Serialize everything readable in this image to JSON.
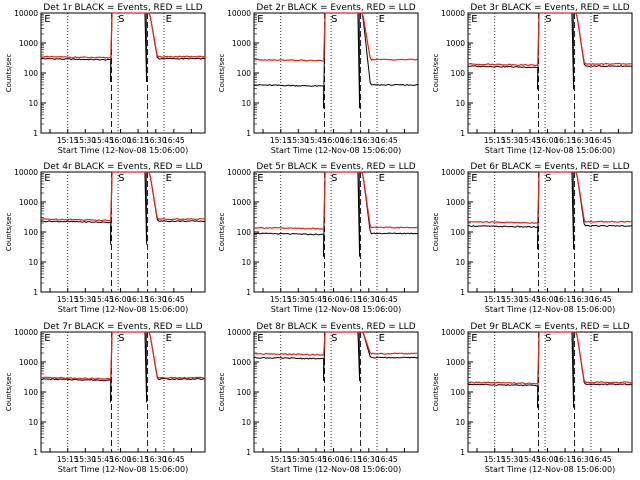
{
  "chart_data": [
    {
      "type": "line",
      "title": "Det 1r BLACK = Events, RED = LLD",
      "xlabel": "Start Time (12-Nov-08 15:06:00)",
      "ylabel": "Counts/sec",
      "black_level": 300,
      "red_level": 350,
      "peak": "saturated",
      "markers": [
        "E",
        "S",
        "E"
      ],
      "xticks": [
        "15:15",
        "15:30",
        "15:45",
        "16:00",
        "16:15",
        "16:30",
        "16:45"
      ],
      "yticks": [
        "1",
        "10",
        "100",
        "1000",
        "10000"
      ]
    },
    {
      "type": "line",
      "title": "Det 2r BLACK = Events, RED = LLD",
      "xlabel": "Start Time (12-Nov-08 15:06:00)",
      "ylabel": "Counts/sec",
      "black_level": 40,
      "red_level": 280,
      "peak": "saturated",
      "markers": [
        "E",
        "S",
        "E"
      ],
      "xticks": [
        "15:15",
        "15:30",
        "15:45",
        "16:00",
        "16:15",
        "16:30",
        "16:45"
      ],
      "yticks": [
        "1",
        "10",
        "100",
        "1000",
        "10000"
      ]
    },
    {
      "type": "line",
      "title": "Det 3r BLACK = Events, RED = LLD",
      "xlabel": "Start Time (12-Nov-08 15:06:00)",
      "ylabel": "Counts/sec",
      "black_level": 170,
      "red_level": 200,
      "peak": "saturated",
      "markers": [
        "E",
        "S",
        "E"
      ],
      "xticks": [
        "15:15",
        "15:30",
        "15:45",
        "16:00",
        "16:15",
        "16:30",
        "16:45"
      ],
      "yticks": [
        "1",
        "10",
        "100",
        "1000",
        "10000"
      ]
    },
    {
      "type": "line",
      "title": "Det 4r BLACK = Events, RED = LLD",
      "xlabel": "Start Time (12-Nov-08 15:06:00)",
      "ylabel": "Counts/sec",
      "black_level": 230,
      "red_level": 270,
      "peak": "saturated",
      "markers": [
        "E",
        "S",
        "E"
      ],
      "xticks": [
        "15:15",
        "15:30",
        "15:45",
        "16:00",
        "16:15",
        "16:30",
        "16:45"
      ],
      "yticks": [
        "1",
        "10",
        "100",
        "1000",
        "10000"
      ]
    },
    {
      "type": "line",
      "title": "Det 5r BLACK = Events, RED = LLD",
      "xlabel": "Start Time (12-Nov-08 15:06:00)",
      "ylabel": "Counts/sec",
      "black_level": 90,
      "red_level": 140,
      "peak": "saturated",
      "markers": [
        "E",
        "S",
        "E"
      ],
      "xticks": [
        "15:15",
        "15:30",
        "15:45",
        "16:00",
        "16:15",
        "16:30",
        "16:45"
      ],
      "yticks": [
        "1",
        "10",
        "100",
        "1000",
        "10000"
      ]
    },
    {
      "type": "line",
      "title": "Det 6r BLACK = Events, RED = LLD",
      "xlabel": "Start Time (12-Nov-08 15:06:00)",
      "ylabel": "Counts/sec",
      "black_level": 160,
      "red_level": 220,
      "peak": "saturated",
      "markers": [
        "E",
        "S",
        "E"
      ],
      "xticks": [
        "15:15",
        "15:30",
        "15:45",
        "16:00",
        "16:15",
        "16:30",
        "16:45"
      ],
      "yticks": [
        "1",
        "10",
        "100",
        "1000",
        "10000"
      ]
    },
    {
      "type": "line",
      "title": "Det 7r BLACK = Events, RED = LLD",
      "xlabel": "Start Time (12-Nov-08 15:06:00)",
      "ylabel": "Counts/sec",
      "black_level": 270,
      "red_level": 300,
      "peak": "saturated",
      "markers": [
        "E",
        "S",
        "E"
      ],
      "xticks": [
        "15:15",
        "15:30",
        "15:45",
        "16:00",
        "16:15",
        "16:30",
        "16:45"
      ],
      "yticks": [
        "1",
        "10",
        "100",
        "1000",
        "10000"
      ]
    },
    {
      "type": "line",
      "title": "Det 8r BLACK = Events, RED = LLD",
      "xlabel": "Start Time (12-Nov-08 15:06:00)",
      "ylabel": "Counts/sec",
      "black_level": 1400,
      "red_level": 1900,
      "peak": "saturated",
      "markers": [
        "E",
        "S",
        "E"
      ],
      "xticks": [
        "15:15",
        "15:30",
        "15:45",
        "16:00",
        "16:15",
        "16:30",
        "16:45"
      ],
      "yticks": [
        "1",
        "10",
        "100",
        "1000",
        "10000"
      ]
    },
    {
      "type": "line",
      "title": "Det 9r BLACK = Events, RED = LLD",
      "xlabel": "Start Time (12-Nov-08 15:06:00)",
      "ylabel": "Counts/sec",
      "black_level": 180,
      "red_level": 210,
      "peak": "saturated",
      "markers": [
        "E",
        "S",
        "E"
      ],
      "xticks": [
        "15:15",
        "15:30",
        "15:45",
        "16:00",
        "16:15",
        "16:30",
        "16:45"
      ],
      "yticks": [
        "1",
        "10",
        "100",
        "1000",
        "10000"
      ]
    }
  ],
  "colors": {
    "events": "#000000",
    "lld": "#e8231b",
    "axis": "#000000",
    "background": "#ffffff"
  }
}
